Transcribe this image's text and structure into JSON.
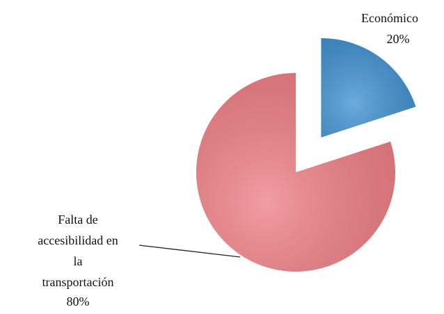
{
  "chart_data": {
    "type": "pie",
    "categories": [
      "Económico",
      "Falta de accesibilidad en la transportación"
    ],
    "values": [
      20,
      80
    ],
    "value_labels": [
      "20%",
      "80%"
    ],
    "colors": [
      "#3b8fd2",
      "#ef7c82"
    ]
  }
}
